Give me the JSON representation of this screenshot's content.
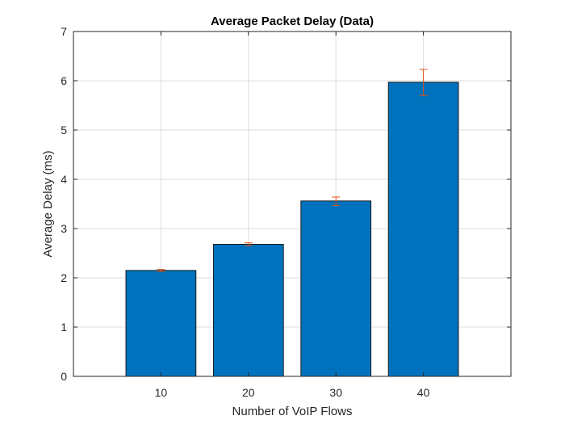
{
  "chart_data": {
    "type": "bar",
    "title": "Average Packet Delay (Data)",
    "xlabel": "Number of VoIP Flows",
    "ylabel": "Average Delay (ms)",
    "categories": [
      "10",
      "20",
      "30",
      "40"
    ],
    "values": [
      2.15,
      2.68,
      3.56,
      5.97
    ],
    "error_low": [
      2.13,
      2.65,
      3.47,
      5.7
    ],
    "error_high": [
      2.17,
      2.71,
      3.64,
      6.23
    ],
    "ylim": [
      0,
      7
    ],
    "yticks": [
      "0",
      "1",
      "2",
      "3",
      "4",
      "5",
      "6",
      "7"
    ],
    "grid": true,
    "bar_color": "#0072BD",
    "error_color": "#D95319"
  }
}
